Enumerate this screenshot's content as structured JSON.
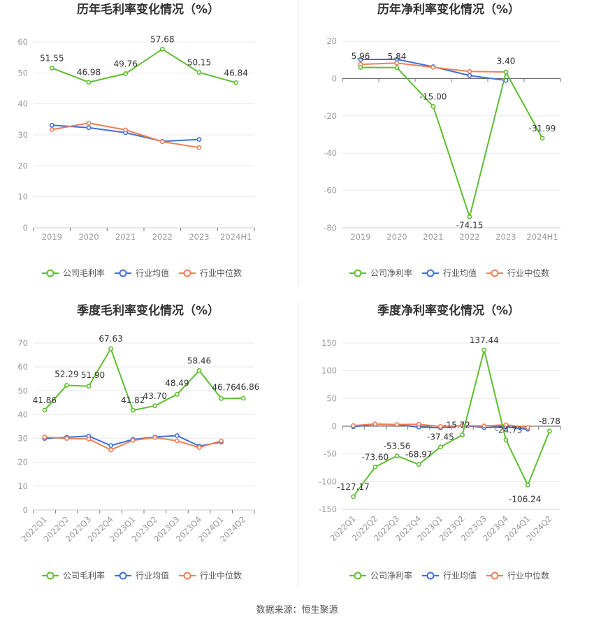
{
  "source": "数据来源：恒生聚源",
  "legend_icons": "circle-line-icon",
  "chart_data": [
    {
      "type": "line",
      "title": "历年毛利率变化情况（%）",
      "categories": [
        "2019",
        "2020",
        "2021",
        "2022",
        "2023",
        "2024H1"
      ],
      "ylim": [
        0,
        60
      ],
      "yticks": [
        "0",
        "10",
        "20",
        "30",
        "40",
        "50",
        "60"
      ],
      "grid": true,
      "legend_position": "bottom",
      "series": [
        {
          "name": "公司毛利率",
          "color": "#5dbf2f",
          "values": [
            51.55,
            46.98,
            49.76,
            57.68,
            50.15,
            46.84
          ],
          "labels": [
            "51.55",
            "46.98",
            "49.76",
            "57.68",
            "50.15",
            "46.84"
          ]
        },
        {
          "name": "行业均值",
          "color": "#3f6fd8",
          "values": [
            33.1,
            32.3,
            30.7,
            27.9,
            28.5,
            null
          ]
        },
        {
          "name": "行业中位数",
          "color": "#ef7f55",
          "values": [
            31.7,
            33.8,
            31.6,
            27.8,
            25.9,
            null
          ]
        }
      ]
    },
    {
      "type": "line",
      "title": "历年净利率变化情况（%）",
      "categories": [
        "2019",
        "2020",
        "2021",
        "2022",
        "2023",
        "2024H1"
      ],
      "ylim": [
        -80,
        20
      ],
      "yticks": [
        "-80",
        "-60",
        "-40",
        "-20",
        "0",
        "20"
      ],
      "grid": true,
      "legend_position": "bottom",
      "series": [
        {
          "name": "公司净利率",
          "color": "#5dbf2f",
          "values": [
            5.96,
            5.84,
            -15.0,
            -74.15,
            3.4,
            -31.99
          ],
          "labels": [
            "5.96",
            "5.84",
            "-15.00",
            "-74.15",
            "3.40",
            "-31.99"
          ]
        },
        {
          "name": "行业均值",
          "color": "#3f6fd8",
          "values": [
            10.2,
            10.3,
            6.3,
            1.6,
            -1.0,
            null
          ]
        },
        {
          "name": "行业中位数",
          "color": "#ef7f55",
          "values": [
            7.6,
            8.3,
            6.0,
            3.8,
            3.5,
            null
          ]
        }
      ]
    },
    {
      "type": "line",
      "title": "季度毛利率变化情况（%）",
      "categories": [
        "2022Q1",
        "2022Q2",
        "2022Q3",
        "2022Q4",
        "2023Q1",
        "2023Q2",
        "2023Q3",
        "2023Q4",
        "2024Q1",
        "2024Q2"
      ],
      "ylim": [
        0,
        70
      ],
      "yticks": [
        "0",
        "10",
        "20",
        "30",
        "40",
        "50",
        "60",
        "70"
      ],
      "grid": true,
      "legend_position": "bottom",
      "series": [
        {
          "name": "公司毛利率",
          "color": "#5dbf2f",
          "values": [
            41.86,
            52.29,
            51.9,
            67.63,
            41.82,
            43.7,
            48.49,
            58.46,
            46.76,
            46.86
          ],
          "labels": [
            "41.86",
            "52.29",
            "51.90",
            "67.63",
            "41.82",
            "43.70",
            "48.49",
            "58.46",
            "46.76",
            "46.86"
          ]
        },
        {
          "name": "行业均值",
          "color": "#3f6fd8",
          "values": [
            30.0,
            30.5,
            31.0,
            27.0,
            29.6,
            30.6,
            31.2,
            26.8,
            28.5,
            null
          ]
        },
        {
          "name": "行业中位数",
          "color": "#ef7f55",
          "values": [
            30.6,
            30.0,
            29.8,
            25.2,
            29.2,
            30.4,
            29.0,
            26.2,
            29.0,
            null
          ]
        }
      ]
    },
    {
      "type": "line",
      "title": "季度净利率变化情况（%）",
      "categories": [
        "2022Q1",
        "2022Q2",
        "2022Q3",
        "2022Q4",
        "2023Q1",
        "2023Q2",
        "2023Q3",
        "2023Q4",
        "2024Q1",
        "2024Q2"
      ],
      "ylim": [
        -150,
        150
      ],
      "yticks": [
        "-150",
        "-100",
        "-50",
        "0",
        "50",
        "100",
        "150"
      ],
      "grid": true,
      "legend_position": "bottom",
      "series": [
        {
          "name": "公司净利率",
          "color": "#5dbf2f",
          "values": [
            -127.17,
            -73.6,
            -53.56,
            -68.97,
            -37.45,
            -15.72,
            137.44,
            -24.73,
            -106.24,
            -8.78
          ],
          "labels": [
            "-127.17",
            "-73.60",
            "-53.56",
            "-68.97",
            "-37.45",
            "-15.72",
            "137.44",
            "-24.73",
            "-106.24",
            "-8.78"
          ]
        },
        {
          "name": "行业均值",
          "color": "#3f6fd8",
          "values": [
            -1.0,
            3.5,
            2.5,
            -1.5,
            -3.0,
            1.5,
            -2.5,
            -1.5,
            -5.5,
            null
          ]
        },
        {
          "name": "行业中位数",
          "color": "#ef7f55",
          "values": [
            1.0,
            4.0,
            3.0,
            3.5,
            -0.5,
            1.0,
            0.5,
            2.5,
            -2.5,
            null
          ]
        }
      ]
    }
  ]
}
